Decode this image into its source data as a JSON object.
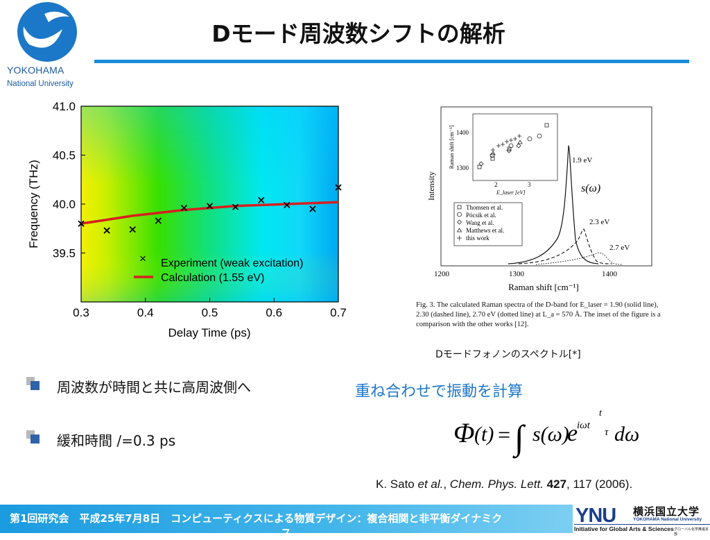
{
  "header": {
    "logo_line1": "YOKOHAMA",
    "logo_line2": "National University",
    "title": "Dモード周波数シフトの解析",
    "accent_color": "#1b8dd9"
  },
  "chart_data": [
    {
      "type": "scatter",
      "title": "",
      "xlabel": "Delay Time (ps)",
      "ylabel": "Frequency (THz)",
      "xlim": [
        0.3,
        0.7
      ],
      "ylim": [
        39.0,
        41.0
      ],
      "xticks": [
        "0.3",
        "0.4",
        "0.5",
        "0.6",
        "0.7"
      ],
      "yticks": [
        "39.5",
        "40.0",
        "40.5",
        "41.0"
      ],
      "background": "heatmap (yellow at left, green middle, cyan/blue right)",
      "legend_position": "lower-right",
      "series": [
        {
          "name": "Experiment (weak excitation)",
          "marker": "x",
          "color": "#000000",
          "x": [
            0.3,
            0.34,
            0.38,
            0.42,
            0.46,
            0.5,
            0.54,
            0.58,
            0.62,
            0.66,
            0.7
          ],
          "y": [
            39.8,
            39.73,
            39.74,
            39.83,
            39.96,
            39.98,
            39.97,
            40.04,
            39.99,
            39.95,
            40.17
          ]
        },
        {
          "name": "Calculation (1.55 eV)",
          "line": "solid",
          "color": "#d42020",
          "x": [
            0.3,
            0.34,
            0.38,
            0.42,
            0.46,
            0.5,
            0.54,
            0.58,
            0.62,
            0.66,
            0.7
          ],
          "y": [
            39.8,
            39.84,
            39.88,
            39.91,
            39.94,
            39.96,
            39.98,
            39.99,
            40.0,
            40.01,
            40.02
          ]
        }
      ]
    },
    {
      "type": "line",
      "title": "",
      "xlabel": "Raman shift [cm⁻¹]",
      "ylabel": "Intensity",
      "xlim": [
        1200,
        1450
      ],
      "xticks": [
        "1200",
        "1300",
        "1400"
      ],
      "annotation": "s(ω)",
      "series": [
        {
          "name": "1.9 eV",
          "line": "solid",
          "peak_x": 1360
        },
        {
          "name": "2.3 eV",
          "line": "dashed",
          "peak_x": 1380
        },
        {
          "name": "2.7 eV",
          "line": "dotted",
          "peak_x": 1405
        }
      ],
      "inset": {
        "type": "scatter",
        "xlabel": "E_laser [eV]",
        "ylabel": "Raman shift [cm⁻¹]",
        "xticks": [
          "2",
          "3"
        ],
        "yticks": [
          "1300",
          "1400"
        ],
        "legend": [
          "Thomsen et al.",
          "Pócsik et al.",
          "Wang et al.",
          "Matthews et al.",
          "this work"
        ]
      },
      "caption": "Fig. 3. The calculated Raman spectra of the D-band for E_laser = 1.90 (solid line), 2.30 (dashed line), 2.70 eV (dotted line) at L_a = 570 Å. The inset of the figure is a comparison with the other works [12]."
    }
  ],
  "figure_right": {
    "inset_y_1400": "1400",
    "inset_y_1300": "1300",
    "inset_x_2": "2",
    "inset_x_3": "3",
    "inset_ylabel": "Raman shift [cm⁻¹]",
    "inset_xlabel": "E_laser [eV]",
    "legend": [
      "Thomsen et al.",
      "Pócsik et al.",
      "Wang et al.",
      "Matthews et al.",
      "this work"
    ],
    "ylabel": "Intensity",
    "xlabel": "Raman shift [cm⁻¹]",
    "x1200": "1200",
    "x1300": "1300",
    "x1400": "1400",
    "label_19": "1.9 eV",
    "label_23": "2.3 eV",
    "label_27": "2.7 eV",
    "s_omega": "s(ω)",
    "caption": "Fig. 3. The calculated Raman spectra of the D-band for E_laser = 1.90 (solid line), 2.30 (dashed line), 2.70 eV (dotted line) at L_a = 570 Å. The inset of the figure is a comparison with the other works [12]."
  },
  "spectrum_label": "Dモードフォノンのスペクトル[*]",
  "bullets": [
    {
      "text": "周波数が時間と共に高周波側へ"
    },
    {
      "text": "緩和時間 /=0.3 ps"
    }
  ],
  "superpose_label": "重ね合わせで振動を計算",
  "reference": {
    "authors": "K. Sato ",
    "etal": "et al.",
    "sep": ", ",
    "journal": "Chem. Phys. Lett.",
    "volume": "427",
    "rest": ", 117 (2006)."
  },
  "footer": {
    "text": "第1回研究会　平成25年7月8日　コンピューティクスによる物質デザイン：複合相関と非平衡ダイナミク",
    "text_wrap": "ス",
    "ynu_mark": "YNU",
    "ynu_ja": "横浜国立大学",
    "ynu_en": "YOKOHAMA National University",
    "ynu_sub": "Initiative for Global Arts & Sciences",
    "ynu_sub2": "グローバル化学推進本部"
  }
}
